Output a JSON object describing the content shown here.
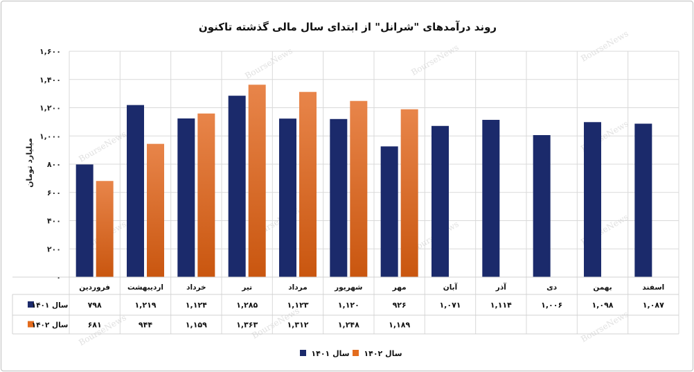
{
  "chart_data": {
    "type": "bar",
    "title": "روند درآمدهای \"شرانل\" از ابتدای سال مالی گذشته تاکنون",
    "ylabel": "میلیارد تومان",
    "ylim": [
      0,
      1600
    ],
    "yticks": [
      "۰",
      "۲۰۰",
      "۴۰۰",
      "۶۰۰",
      "۸۰۰",
      "۱,۰۰۰",
      "۱,۲۰۰",
      "۱,۴۰۰",
      "۱,۶۰۰"
    ],
    "ytick_values": [
      0,
      200,
      400,
      600,
      800,
      1000,
      1200,
      1400,
      1600
    ],
    "categories": [
      "فروردین",
      "اردیبهشت",
      "خرداد",
      "تیر",
      "مرداد",
      "شهریور",
      "مهر",
      "آبان",
      "آذر",
      "دی",
      "بهمن",
      "اسفند"
    ],
    "series": [
      {
        "name": "سال ۱۴۰۱",
        "color": "#1b2a6b",
        "values": [
          798,
          1219,
          1124,
          1285,
          1123,
          1120,
          926,
          1071,
          1114,
          1006,
          1098,
          1087
        ],
        "labels": [
          "۷۹۸",
          "۱,۲۱۹",
          "۱,۱۲۴",
          "۱,۲۸۵",
          "۱,۱۲۳",
          "۱,۱۲۰",
          "۹۲۶",
          "۱,۰۷۱",
          "۱,۱۱۴",
          "۱,۰۰۶",
          "۱,۰۹۸",
          "۱,۰۸۷"
        ]
      },
      {
        "name": "سال ۱۴۰۲",
        "color": "#e36c1e",
        "values": [
          681,
          944,
          1159,
          1363,
          1312,
          1248,
          1189,
          null,
          null,
          null,
          null,
          null
        ],
        "labels": [
          "۶۸۱",
          "۹۴۴",
          "۱,۱۵۹",
          "۱,۳۶۳",
          "۱,۳۱۲",
          "۱,۲۴۸",
          "۱,۱۸۹",
          "",
          "",
          "",
          "",
          ""
        ]
      }
    ],
    "grid": true,
    "legend": "bottom",
    "data_table": true
  },
  "watermark": "BourseNews"
}
